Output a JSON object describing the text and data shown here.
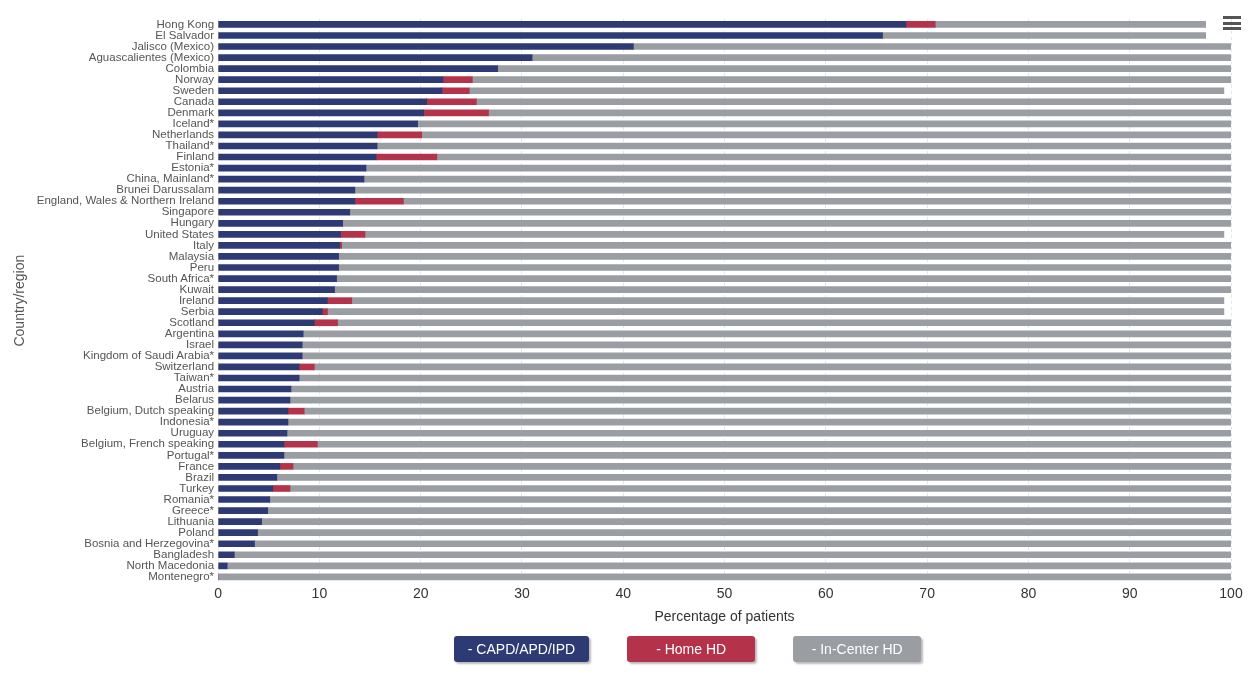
{
  "chart_data": {
    "type": "bar",
    "orientation": "horizontal",
    "stacked": true,
    "xlabel": "Percentage of patients",
    "ylabel": "Country/region",
    "categories": [
      "Hong Kong",
      "El Salvador",
      "Jalisco (Mexico)",
      "Aguascalientes (Mexico)",
      "Colombia",
      "Norway",
      "Sweden",
      "Canada",
      "Denmark",
      "Iceland*",
      "Netherlands",
      "Thailand*",
      "Finland",
      "Estonia*",
      "China, Mainland*",
      "Brunei Darussalam",
      "England, Wales & Northern Ireland",
      "Singapore",
      "Hungary",
      "United States",
      "Italy",
      "Malaysia",
      "Peru",
      "South Africa*",
      "Kuwait",
      "Ireland",
      "Serbia",
      "Scotland",
      "Argentina",
      "Israel",
      "Kingdom of Saudi Arabia*",
      "Switzerland",
      "Taiwan*",
      "Austria",
      "Belarus",
      "Belgium, Dutch speaking",
      "Indonesia*",
      "Uruguay",
      "Belgium, French speaking",
      "Portugal*",
      "France",
      "Brazil",
      "Turkey",
      "Romania*",
      "Greece*",
      "Lithuania",
      "Poland",
      "Bosnia and Herzegovina*",
      "Bangladesh",
      "North Macedonia",
      "Montenegro*"
    ],
    "series": [
      {
        "name": "- CAPD/APD/IPD",
        "color": "#2e3a74",
        "values": [
          67.9,
          65.6,
          41.0,
          31.0,
          27.6,
          22.2,
          22.1,
          20.6,
          20.3,
          19.7,
          15.7,
          15.7,
          15.6,
          14.6,
          14.4,
          13.5,
          13.5,
          13.0,
          12.3,
          12.1,
          12.0,
          11.9,
          11.9,
          11.7,
          11.5,
          10.8,
          10.3,
          9.5,
          8.4,
          8.3,
          8.3,
          8.0,
          8.0,
          7.2,
          7.1,
          6.9,
          6.9,
          6.8,
          6.5,
          6.5,
          6.1,
          5.8,
          5.4,
          5.1,
          4.9,
          4.3,
          3.9,
          3.6,
          1.6,
          0.9,
          0
        ]
      },
      {
        "name": "- Home HD",
        "color": "#b5334a",
        "values": [
          2.9,
          null,
          null,
          null,
          null,
          2.9,
          2.7,
          4.9,
          6.4,
          null,
          4.4,
          null,
          6.0,
          null,
          null,
          null,
          4.8,
          null,
          null,
          2.4,
          0.2,
          null,
          null,
          null,
          null,
          2.4,
          0.5,
          2.3,
          null,
          null,
          null,
          1.5,
          null,
          null,
          null,
          1.6,
          null,
          null,
          3.3,
          null,
          1.3,
          null,
          1.7,
          null,
          null,
          null,
          null,
          null,
          null,
          null,
          null
        ]
      },
      {
        "name": "- In-Center HD",
        "color": "#9a9ea3",
        "values": [
          26.7,
          31.9,
          59.0,
          69.0,
          72.4,
          74.9,
          74.5,
          74.5,
          73.3,
          80.3,
          79.9,
          84.3,
          78.4,
          85.4,
          85.6,
          86.5,
          81.7,
          87.0,
          87.7,
          84.8,
          87.8,
          88.1,
          88.1,
          88.3,
          88.5,
          86.1,
          88.5,
          88.2,
          91.6,
          91.7,
          91.7,
          90.5,
          92.0,
          92.8,
          92.9,
          91.5,
          93.1,
          93.2,
          90.2,
          93.5,
          92.6,
          94.2,
          92.9,
          94.9,
          95.1,
          95.7,
          96.1,
          96.4,
          98.4,
          99.1,
          100
        ]
      }
    ],
    "xlim": [
      0,
      100
    ],
    "xticks": [
      0,
      10,
      20,
      30,
      40,
      50,
      60,
      70,
      80,
      90,
      100
    ],
    "grid": "x",
    "legend": "bottom"
  }
}
